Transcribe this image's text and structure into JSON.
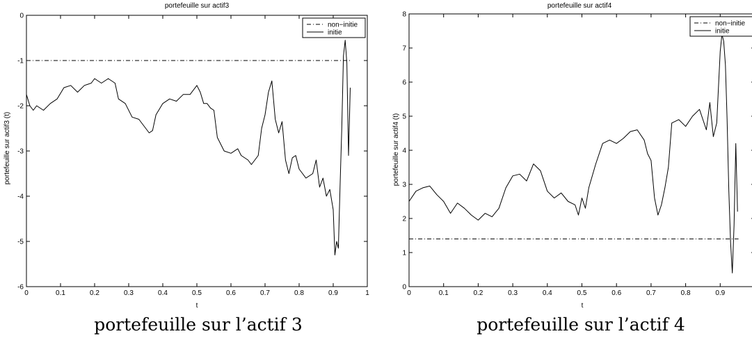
{
  "charts": [
    {
      "title": "portefeuille sur actif3",
      "xlabel": "t",
      "ylabel": "portefeuille sur actif3 (t)",
      "caption": "portefeuille sur l’actif 3"
    },
    {
      "title": "portefeuille sur actif4",
      "xlabel": "t",
      "ylabel": "portefeuille sur actif4 (t)",
      "caption": "portefeuille sur l’actif 4"
    }
  ],
  "chart_data": [
    {
      "type": "line",
      "title": "portefeuille sur actif3",
      "xlabel": "t",
      "ylabel": "portefeuille sur actif3 (t)",
      "xlim": [
        0,
        1
      ],
      "ylim": [
        -6,
        0
      ],
      "xticks": [
        "0",
        "0.1",
        "0.2",
        "0.3",
        "0.4",
        "0.5",
        "0.6",
        "0.7",
        "0.8",
        "0.9",
        "1"
      ],
      "yticks": [
        "-6",
        "-5",
        "-4",
        "-3",
        "-2",
        "-1",
        "0"
      ],
      "legend": {
        "position": "top-right",
        "entries": [
          "non−initie",
          "initie"
        ]
      },
      "grid": false,
      "series": [
        {
          "name": "non−initie",
          "style": "dash-dot",
          "x": [
            0,
            0.953
          ],
          "y": [
            -1.0,
            -1.0
          ]
        },
        {
          "name": "initie",
          "style": "solid",
          "x": [
            0,
            0.01,
            0.02,
            0.03,
            0.05,
            0.07,
            0.09,
            0.11,
            0.13,
            0.15,
            0.17,
            0.19,
            0.2,
            0.22,
            0.24,
            0.26,
            0.27,
            0.29,
            0.31,
            0.33,
            0.35,
            0.36,
            0.37,
            0.38,
            0.4,
            0.42,
            0.44,
            0.46,
            0.48,
            0.5,
            0.51,
            0.52,
            0.53,
            0.54,
            0.55,
            0.56,
            0.58,
            0.6,
            0.62,
            0.63,
            0.65,
            0.66,
            0.68,
            0.69,
            0.7,
            0.71,
            0.72,
            0.73,
            0.74,
            0.75,
            0.76,
            0.77,
            0.78,
            0.79,
            0.8,
            0.82,
            0.84,
            0.85,
            0.86,
            0.87,
            0.88,
            0.89,
            0.9,
            0.905,
            0.91,
            0.915,
            0.92,
            0.925,
            0.93,
            0.935,
            0.94,
            0.945,
            0.95
          ],
          "y": [
            -1.75,
            -2.0,
            -2.1,
            -2.0,
            -2.1,
            -1.95,
            -1.85,
            -1.6,
            -1.55,
            -1.7,
            -1.55,
            -1.5,
            -1.4,
            -1.5,
            -1.4,
            -1.5,
            -1.85,
            -1.95,
            -2.25,
            -2.3,
            -2.5,
            -2.6,
            -2.55,
            -2.2,
            -1.95,
            -1.85,
            -1.9,
            -1.75,
            -1.75,
            -1.55,
            -1.7,
            -1.95,
            -1.95,
            -2.05,
            -2.1,
            -2.7,
            -3.0,
            -3.05,
            -2.95,
            -3.1,
            -3.2,
            -3.3,
            -3.1,
            -2.5,
            -2.2,
            -1.7,
            -1.45,
            -2.3,
            -2.6,
            -2.35,
            -3.2,
            -3.5,
            -3.15,
            -3.1,
            -3.4,
            -3.6,
            -3.5,
            -3.2,
            -3.8,
            -3.6,
            -4.0,
            -3.85,
            -4.3,
            -5.3,
            -5.0,
            -5.15,
            -3.8,
            -2.5,
            -0.9,
            -0.55,
            -1.05,
            -3.1,
            -1.6
          ]
        }
      ]
    },
    {
      "type": "line",
      "title": "portefeuille sur actif4",
      "xlabel": "t",
      "ylabel": "portefeuille sur actif4 (t)",
      "xlim": [
        0,
        1
      ],
      "ylim": [
        0,
        8
      ],
      "xticks": [
        "0",
        "0.1",
        "0.2",
        "0.3",
        "0.4",
        "0.5",
        "0.6",
        "0.7",
        "0.8",
        "0.9"
      ],
      "yticks": [
        "0",
        "1",
        "2",
        "3",
        "4",
        "5",
        "6",
        "7",
        "8"
      ],
      "legend": {
        "position": "top-right",
        "entries": [
          "non−initie",
          "initie"
        ]
      },
      "grid": false,
      "series": [
        {
          "name": "non−initie",
          "style": "dash-dot",
          "x": [
            0,
            0.953
          ],
          "y": [
            1.4,
            1.4
          ]
        },
        {
          "name": "initie",
          "style": "solid",
          "x": [
            0,
            0.02,
            0.04,
            0.06,
            0.08,
            0.1,
            0.12,
            0.14,
            0.16,
            0.18,
            0.2,
            0.22,
            0.24,
            0.26,
            0.28,
            0.3,
            0.32,
            0.34,
            0.36,
            0.38,
            0.4,
            0.42,
            0.44,
            0.46,
            0.48,
            0.49,
            0.5,
            0.51,
            0.52,
            0.54,
            0.56,
            0.58,
            0.6,
            0.62,
            0.64,
            0.66,
            0.68,
            0.69,
            0.7,
            0.71,
            0.72,
            0.73,
            0.74,
            0.75,
            0.76,
            0.78,
            0.8,
            0.82,
            0.84,
            0.86,
            0.87,
            0.88,
            0.89,
            0.9,
            0.905,
            0.91,
            0.915,
            0.92,
            0.925,
            0.93,
            0.935,
            0.94,
            0.945,
            0.95
          ],
          "y": [
            2.5,
            2.8,
            2.9,
            2.95,
            2.7,
            2.5,
            2.15,
            2.45,
            2.3,
            2.1,
            1.95,
            2.15,
            2.05,
            2.3,
            2.9,
            3.25,
            3.3,
            3.1,
            3.6,
            3.4,
            2.8,
            2.6,
            2.75,
            2.5,
            2.4,
            2.1,
            2.6,
            2.3,
            2.9,
            3.6,
            4.2,
            4.3,
            4.2,
            4.35,
            4.55,
            4.6,
            4.3,
            3.9,
            3.7,
            2.6,
            2.1,
            2.4,
            2.9,
            3.5,
            4.8,
            4.9,
            4.7,
            5.0,
            5.2,
            4.6,
            5.4,
            4.4,
            4.8,
            6.9,
            7.4,
            7.2,
            6.5,
            4.9,
            2.8,
            1.3,
            0.4,
            1.8,
            4.2,
            2.2
          ]
        }
      ]
    }
  ]
}
